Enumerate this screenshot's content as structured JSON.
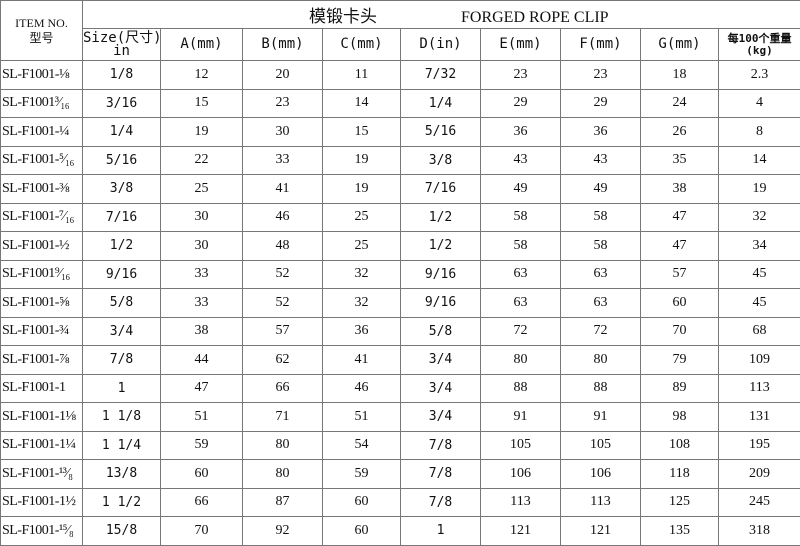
{
  "title": {
    "cn": "模锻卡头",
    "en": "FORGED ROPE CLIP"
  },
  "headers": {
    "item_en": "ITEM NO.",
    "item_cn": "型号",
    "size": "Size(尺寸)",
    "size_unit": "in",
    "a": "A(mm)",
    "b": "B(mm)",
    "c": "C(mm)",
    "d": "D(in)",
    "e": "E(mm)",
    "f": "F(mm)",
    "g": "G(mm)",
    "weight": "每100个重量",
    "weight_unit": "(kg)"
  },
  "rows": [
    [
      "SL-F1001-⅛",
      "1/8",
      "12",
      "20",
      "11",
      "7/32",
      "23",
      "23",
      "18",
      "2.3"
    ],
    [
      "SL-F1001³⁄₁₆",
      "3/16",
      "15",
      "23",
      "14",
      "1/4",
      "29",
      "29",
      "24",
      "4"
    ],
    [
      "SL-F1001-¼",
      "1/4",
      "19",
      "30",
      "15",
      "5/16",
      "36",
      "36",
      "26",
      "8"
    ],
    [
      "SL-F1001-⁵⁄₁₆",
      "5/16",
      "22",
      "33",
      "19",
      "3/8",
      "43",
      "43",
      "35",
      "14"
    ],
    [
      "SL-F1001-⅜",
      "3/8",
      "25",
      "41",
      "19",
      "7/16",
      "49",
      "49",
      "38",
      "19"
    ],
    [
      "SL-F1001-⁷⁄₁₆",
      "7/16",
      "30",
      "46",
      "25",
      "1/2",
      "58",
      "58",
      "47",
      "32"
    ],
    [
      "SL-F1001-½",
      "1/2",
      "30",
      "48",
      "25",
      "1/2",
      "58",
      "58",
      "47",
      "34"
    ],
    [
      "SL-F1001⁹⁄₁₆",
      "9/16",
      "33",
      "52",
      "32",
      "9/16",
      "63",
      "63",
      "57",
      "45"
    ],
    [
      "SL-F1001-⅝",
      "5/8",
      "33",
      "52",
      "32",
      "9/16",
      "63",
      "63",
      "60",
      "45"
    ],
    [
      "SL-F1001-¾",
      "3/4",
      "38",
      "57",
      "36",
      "5/8",
      "72",
      "72",
      "70",
      "68"
    ],
    [
      "SL-F1001-⅞",
      "7/8",
      "44",
      "62",
      "41",
      "3/4",
      "80",
      "80",
      "79",
      "109"
    ],
    [
      "SL-F1001-1",
      "1",
      "47",
      "66",
      "46",
      "3/4",
      "88",
      "88",
      "89",
      "113"
    ],
    [
      "SL-F1001-1⅛",
      "1 1/8",
      "51",
      "71",
      "51",
      "3/4",
      "91",
      "91",
      "98",
      "131"
    ],
    [
      "SL-F1001-1¼",
      "1 1/4",
      "59",
      "80",
      "54",
      "7/8",
      "105",
      "105",
      "108",
      "195"
    ],
    [
      "SL-F1001-¹³⁄₈",
      "13/8",
      "60",
      "80",
      "59",
      "7/8",
      "106",
      "106",
      "118",
      "209"
    ],
    [
      "SL-F1001-1½",
      "1 1/2",
      "66",
      "87",
      "60",
      "7/8",
      "113",
      "113",
      "125",
      "245"
    ],
    [
      "SL-F1001-¹⁵⁄₈",
      "15/8",
      "70",
      "92",
      "60",
      "1",
      "121",
      "121",
      "135",
      "318"
    ]
  ]
}
